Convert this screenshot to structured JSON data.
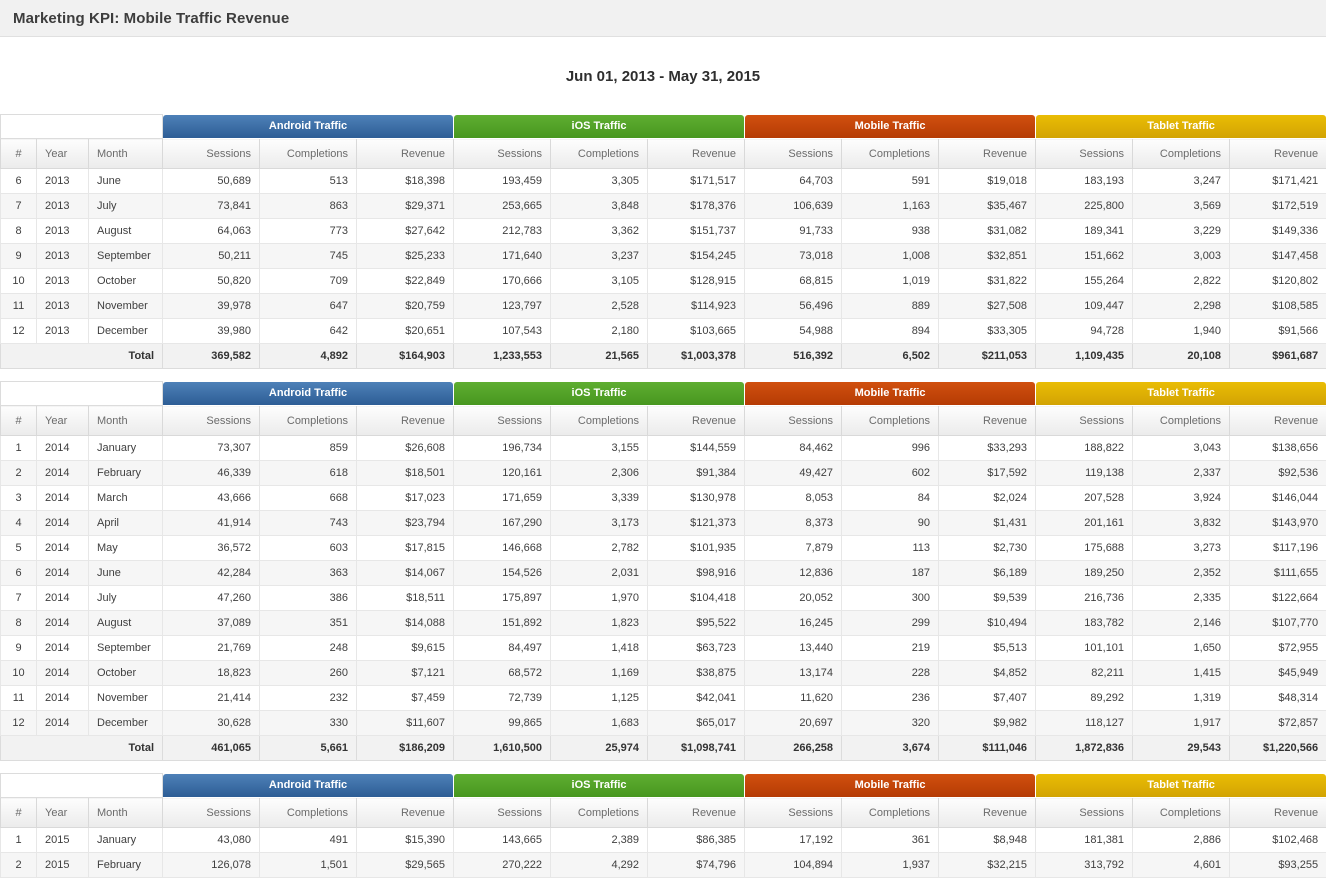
{
  "app": {
    "title": "Marketing KPI: Mobile Traffic Revenue"
  },
  "date_range": "Jun 01, 2013 - May 31, 2015",
  "groups": [
    "Android Traffic",
    "iOS Traffic",
    "Mobile Traffic",
    "Tablet Traffic"
  ],
  "group_colors": {
    "android": [
      "#4e81b8",
      "#2d5d95"
    ],
    "ios": [
      "#5fae31",
      "#47971f"
    ],
    "mobile": [
      "#d1500f",
      "#b53b04"
    ],
    "tablet": [
      "#eabd05",
      "#d2a303"
    ]
  },
  "columns": {
    "num": "#",
    "year": "Year",
    "month": "Month",
    "sessions": "Sessions",
    "completions": "Completions",
    "revenue": "Revenue",
    "total_label": "Total"
  },
  "tables": [
    {
      "rows": [
        [
          "6",
          "2013",
          "June",
          "50,689",
          "513",
          "$18,398",
          "193,459",
          "3,305",
          "$171,517",
          "64,703",
          "591",
          "$19,018",
          "183,193",
          "3,247",
          "$171,421"
        ],
        [
          "7",
          "2013",
          "July",
          "73,841",
          "863",
          "$29,371",
          "253,665",
          "3,848",
          "$178,376",
          "106,639",
          "1,163",
          "$35,467",
          "225,800",
          "3,569",
          "$172,519"
        ],
        [
          "8",
          "2013",
          "August",
          "64,063",
          "773",
          "$27,642",
          "212,783",
          "3,362",
          "$151,737",
          "91,733",
          "938",
          "$31,082",
          "189,341",
          "3,229",
          "$149,336"
        ],
        [
          "9",
          "2013",
          "September",
          "50,211",
          "745",
          "$25,233",
          "171,640",
          "3,237",
          "$154,245",
          "73,018",
          "1,008",
          "$32,851",
          "151,662",
          "3,003",
          "$147,458"
        ],
        [
          "10",
          "2013",
          "October",
          "50,820",
          "709",
          "$22,849",
          "170,666",
          "3,105",
          "$128,915",
          "68,815",
          "1,019",
          "$31,822",
          "155,264",
          "2,822",
          "$120,802"
        ],
        [
          "11",
          "2013",
          "November",
          "39,978",
          "647",
          "$20,759",
          "123,797",
          "2,528",
          "$114,923",
          "56,496",
          "889",
          "$27,508",
          "109,447",
          "2,298",
          "$108,585"
        ],
        [
          "12",
          "2013",
          "December",
          "39,980",
          "642",
          "$20,651",
          "107,543",
          "2,180",
          "$103,665",
          "54,988",
          "894",
          "$33,305",
          "94,728",
          "1,940",
          "$91,566"
        ]
      ],
      "total": [
        "369,582",
        "4,892",
        "$164,903",
        "1,233,553",
        "21,565",
        "$1,003,378",
        "516,392",
        "6,502",
        "$211,053",
        "1,109,435",
        "20,108",
        "$961,687"
      ]
    },
    {
      "rows": [
        [
          "1",
          "2014",
          "January",
          "73,307",
          "859",
          "$26,608",
          "196,734",
          "3,155",
          "$144,559",
          "84,462",
          "996",
          "$33,293",
          "188,822",
          "3,043",
          "$138,656"
        ],
        [
          "2",
          "2014",
          "February",
          "46,339",
          "618",
          "$18,501",
          "120,161",
          "2,306",
          "$91,384",
          "49,427",
          "602",
          "$17,592",
          "119,138",
          "2,337",
          "$92,536"
        ],
        [
          "3",
          "2014",
          "March",
          "43,666",
          "668",
          "$17,023",
          "171,659",
          "3,339",
          "$130,978",
          "8,053",
          "84",
          "$2,024",
          "207,528",
          "3,924",
          "$146,044"
        ],
        [
          "4",
          "2014",
          "April",
          "41,914",
          "743",
          "$23,794",
          "167,290",
          "3,173",
          "$121,373",
          "8,373",
          "90",
          "$1,431",
          "201,161",
          "3,832",
          "$143,970"
        ],
        [
          "5",
          "2014",
          "May",
          "36,572",
          "603",
          "$17,815",
          "146,668",
          "2,782",
          "$101,935",
          "7,879",
          "113",
          "$2,730",
          "175,688",
          "3,273",
          "$117,196"
        ],
        [
          "6",
          "2014",
          "June",
          "42,284",
          "363",
          "$14,067",
          "154,526",
          "2,031",
          "$98,916",
          "12,836",
          "187",
          "$6,189",
          "189,250",
          "2,352",
          "$111,655"
        ],
        [
          "7",
          "2014",
          "July",
          "47,260",
          "386",
          "$18,511",
          "175,897",
          "1,970",
          "$104,418",
          "20,052",
          "300",
          "$9,539",
          "216,736",
          "2,335",
          "$122,664"
        ],
        [
          "8",
          "2014",
          "August",
          "37,089",
          "351",
          "$14,088",
          "151,892",
          "1,823",
          "$95,522",
          "16,245",
          "299",
          "$10,494",
          "183,782",
          "2,146",
          "$107,770"
        ],
        [
          "9",
          "2014",
          "September",
          "21,769",
          "248",
          "$9,615",
          "84,497",
          "1,418",
          "$63,723",
          "13,440",
          "219",
          "$5,513",
          "101,101",
          "1,650",
          "$72,955"
        ],
        [
          "10",
          "2014",
          "October",
          "18,823",
          "260",
          "$7,121",
          "68,572",
          "1,169",
          "$38,875",
          "13,174",
          "228",
          "$4,852",
          "82,211",
          "1,415",
          "$45,949"
        ],
        [
          "11",
          "2014",
          "November",
          "21,414",
          "232",
          "$7,459",
          "72,739",
          "1,125",
          "$42,041",
          "11,620",
          "236",
          "$7,407",
          "89,292",
          "1,319",
          "$48,314"
        ],
        [
          "12",
          "2014",
          "December",
          "30,628",
          "330",
          "$11,607",
          "99,865",
          "1,683",
          "$65,017",
          "20,697",
          "320",
          "$9,982",
          "118,127",
          "1,917",
          "$72,857"
        ]
      ],
      "total": [
        "461,065",
        "5,661",
        "$186,209",
        "1,610,500",
        "25,974",
        "$1,098,741",
        "266,258",
        "3,674",
        "$111,046",
        "1,872,836",
        "29,543",
        "$1,220,566"
      ]
    },
    {
      "rows": [
        [
          "1",
          "2015",
          "January",
          "43,080",
          "491",
          "$15,390",
          "143,665",
          "2,389",
          "$86,385",
          "17,192",
          "361",
          "$8,948",
          "181,381",
          "2,886",
          "$102,468"
        ],
        [
          "2",
          "2015",
          "February",
          "126,078",
          "1,501",
          "$29,565",
          "270,222",
          "4,292",
          "$74,796",
          "104,894",
          "1,937",
          "$32,215",
          "313,792",
          "4,601",
          "$93,255"
        ]
      ],
      "total": null
    }
  ]
}
